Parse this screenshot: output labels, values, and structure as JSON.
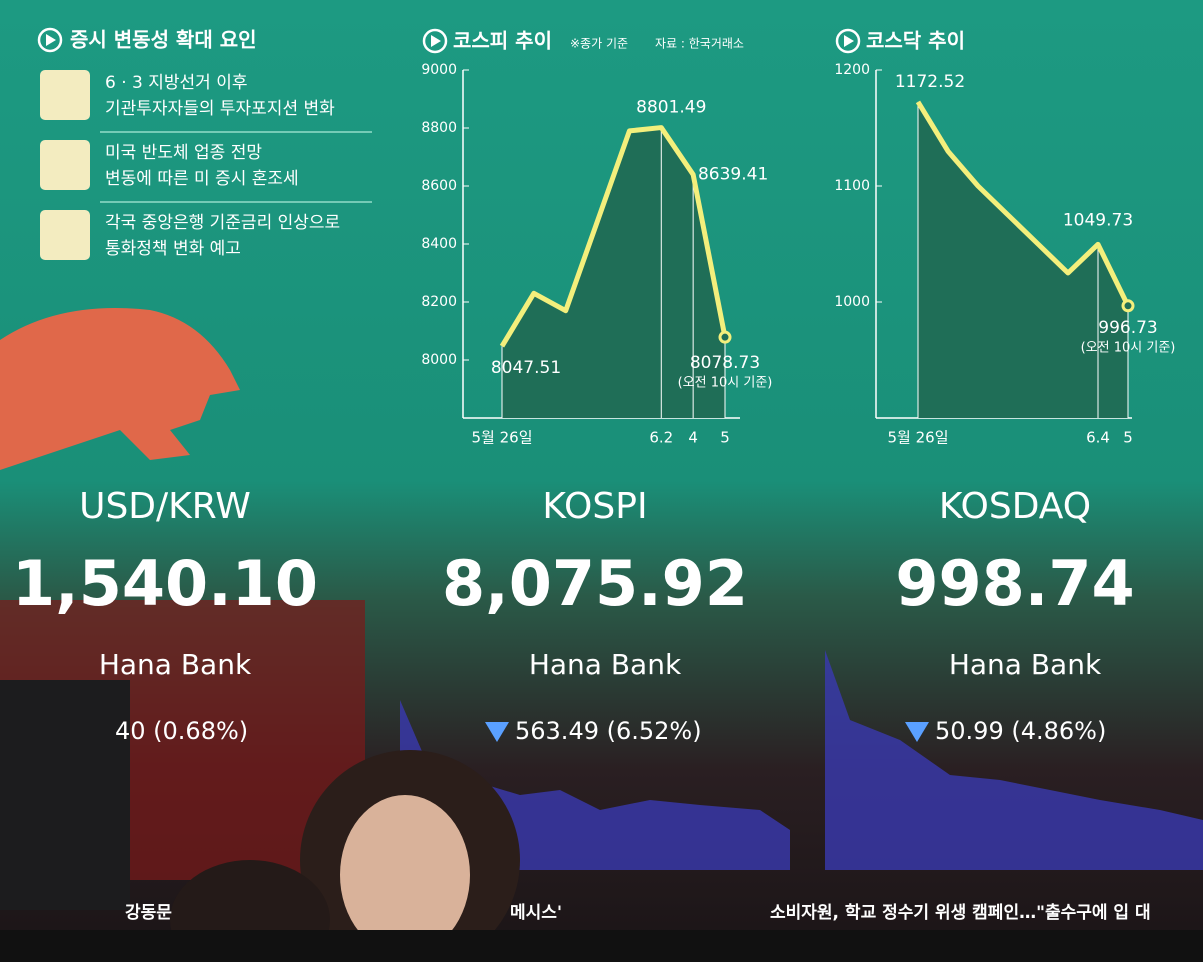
{
  "factors": {
    "title": "증시 변동성 확대 요인",
    "items": [
      [
        "6 · 3 지방선거 이후",
        "기관투자자들의 투자포지션 변화"
      ],
      [
        "미국 반도체 업종 전망",
        "변동에 따른 미 증시 혼조세"
      ],
      [
        "각국 중앙은행 기준금리 인상으로",
        "통화정책 변화 예고"
      ]
    ]
  },
  "chart_data": [
    {
      "type": "line",
      "title": "코스피 추이",
      "subtitle": "※종가 기준",
      "source": "자료 : 한국거래소",
      "categories": [
        "5월 26일",
        null,
        null,
        null,
        null,
        "6.2",
        "4",
        "5"
      ],
      "values": [
        8047.51,
        8230,
        8170,
        8480,
        8790,
        8801.49,
        8639.41,
        8078.73
      ],
      "value_labels": [
        "8047.51",
        null,
        null,
        null,
        null,
        "8801.49",
        "8639.41",
        "8078.73"
      ],
      "annotation": "(오전 10시 기준)",
      "color": "#f3ef7c",
      "ylim": [
        7800,
        9000
      ],
      "yticks": [
        8000,
        8200,
        8400,
        8600,
        8800,
        9000
      ]
    },
    {
      "type": "line",
      "title": "코스닥 추이",
      "categories": [
        "5월 26일",
        null,
        null,
        null,
        null,
        null,
        "6.4",
        "5"
      ],
      "values": [
        1172.52,
        1130,
        1100,
        1075,
        1050,
        1025,
        1049.73,
        996.73
      ],
      "value_labels": [
        "1172.52",
        null,
        null,
        null,
        null,
        null,
        "1049.73",
        "996.73"
      ],
      "annotation": "(오전 10시 기준)",
      "color": "#f3ef7c",
      "ylim": [
        900,
        1200
      ],
      "yticks": [
        1000,
        1100,
        1200
      ]
    }
  ],
  "screens": [
    {
      "name": "USD/KRW",
      "price": "1,540.10",
      "bank": "Hana Bank",
      "change": "40 (0.68%)"
    },
    {
      "name": "KOSPI",
      "price": "8,075.92",
      "bank": "Hana Bank",
      "change": "563.49 (6.52%)"
    },
    {
      "name": "KOSDAQ",
      "price": "998.74",
      "bank": "Hana Bank",
      "change": "50.99 (4.86%)"
    }
  ],
  "ticker": [
    "강동문",
    "메시스'",
    "소비자원, 학교 정수기 위생 캠페인…\"출수구에 입 대"
  ]
}
